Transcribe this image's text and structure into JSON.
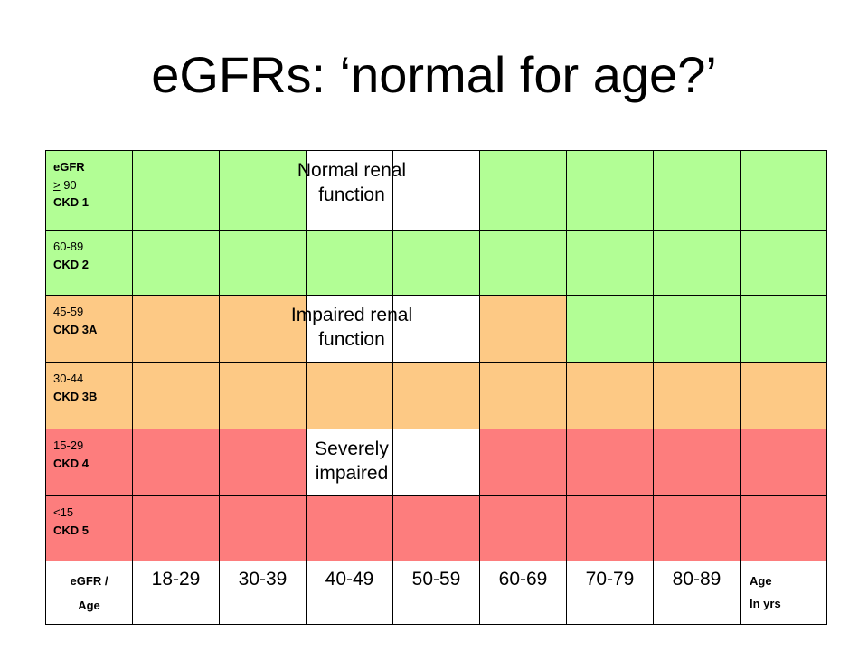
{
  "title": "eGFRs: ‘normal for age?’",
  "rows": [
    {
      "line1": "eGFR",
      "gte": ">",
      "line2": " 90",
      "line3": "CKD 1",
      "overlay": [
        "Normal renal",
        "function"
      ]
    },
    {
      "line1": "60-89",
      "line2": "CKD 2"
    },
    {
      "line1": "45-59",
      "line2": "CKD 3A",
      "overlay": [
        "Impaired renal",
        "function"
      ]
    },
    {
      "line1": "30-44",
      "line2": "CKD 3B"
    },
    {
      "line1": "15-29",
      "line2": "CKD 4",
      "overlay": [
        "Severely",
        "impaired"
      ]
    },
    {
      "line1": "<15",
      "line2": "CKD 5"
    }
  ],
  "axis": {
    "corner_line1": "eGFR  /",
    "corner_line2": "Age",
    "ages": [
      "18-29",
      "30-39",
      "40-49",
      "50-59",
      "60-69",
      "70-79",
      "80-89"
    ],
    "unit_line1": "Age",
    "unit_line2": "In yrs"
  },
  "colors": {
    "normal": "#b2fe95",
    "impaired": "#fdc985",
    "severe": "#fd7d7d"
  }
}
